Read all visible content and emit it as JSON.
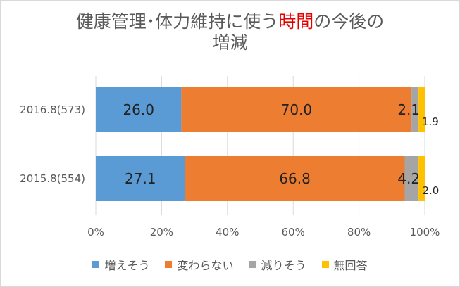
{
  "chart_data": {
    "type": "bar",
    "orientation": "horizontal",
    "stacked": "percent",
    "title_parts": [
      "健康管理･体力維持に使う",
      "時間",
      "の今後の",
      "増減"
    ],
    "categories": [
      "2016.8(573)",
      "2015.8(554)"
    ],
    "series": [
      {
        "name": "増えそう",
        "values": [
          26.0,
          27.1
        ],
        "labels": [
          "26.0",
          "27.1"
        ],
        "color": "#5b9bd5"
      },
      {
        "name": "変わらない",
        "values": [
          70.0,
          66.8
        ],
        "labels": [
          "70.0",
          "66.8"
        ],
        "color": "#ed7d31"
      },
      {
        "name": "減りそう",
        "values": [
          2.1,
          4.2
        ],
        "labels": [
          "2.1",
          "4.2"
        ],
        "color": "#a5a5a5"
      },
      {
        "name": "無回答",
        "values": [
          1.9,
          2.0
        ],
        "labels": [
          "1.9",
          "2.0"
        ],
        "color": "#ffc000"
      }
    ],
    "xlim": [
      0,
      100
    ],
    "xticks": [
      "0%",
      "20%",
      "40%",
      "60%",
      "80%",
      "100%"
    ],
    "grid": true,
    "legend_position": "bottom"
  }
}
